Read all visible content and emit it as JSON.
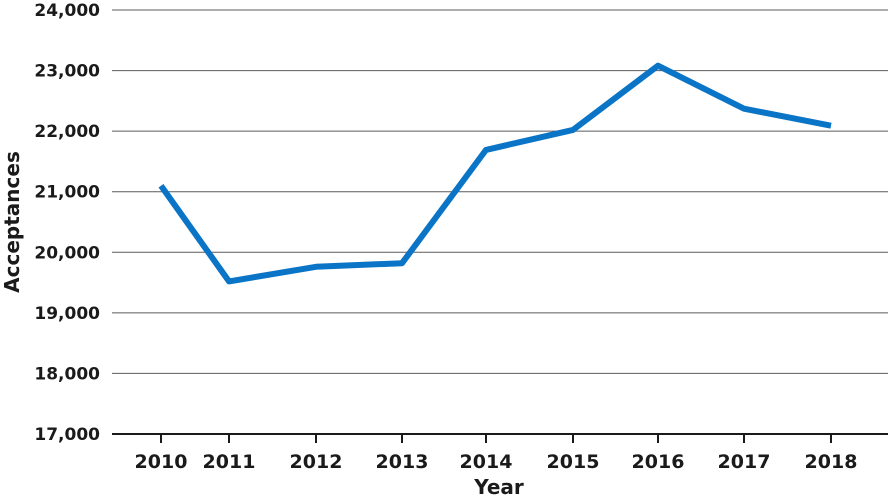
{
  "chart_data": {
    "type": "line",
    "title": "",
    "xlabel": "Year",
    "ylabel": "Acceptances",
    "categories": [
      "2010",
      "2011",
      "2012",
      "2013",
      "2014",
      "2015",
      "2016",
      "2017",
      "2018"
    ],
    "series": [
      {
        "values": [
          21100,
          19520,
          19760,
          19820,
          21690,
          22020,
          23080,
          22370,
          22090
        ],
        "color": "#0a74c6"
      }
    ],
    "ylim": [
      17000,
      24000
    ],
    "yticks": [
      17000,
      18000,
      19000,
      20000,
      21000,
      22000,
      23000,
      24000
    ],
    "ytick_labels": [
      "17,000",
      "18,000",
      "19,000",
      "20,000",
      "21,000",
      "22,000",
      "23,000",
      "24,000"
    ],
    "grid": true,
    "legend": "none"
  }
}
